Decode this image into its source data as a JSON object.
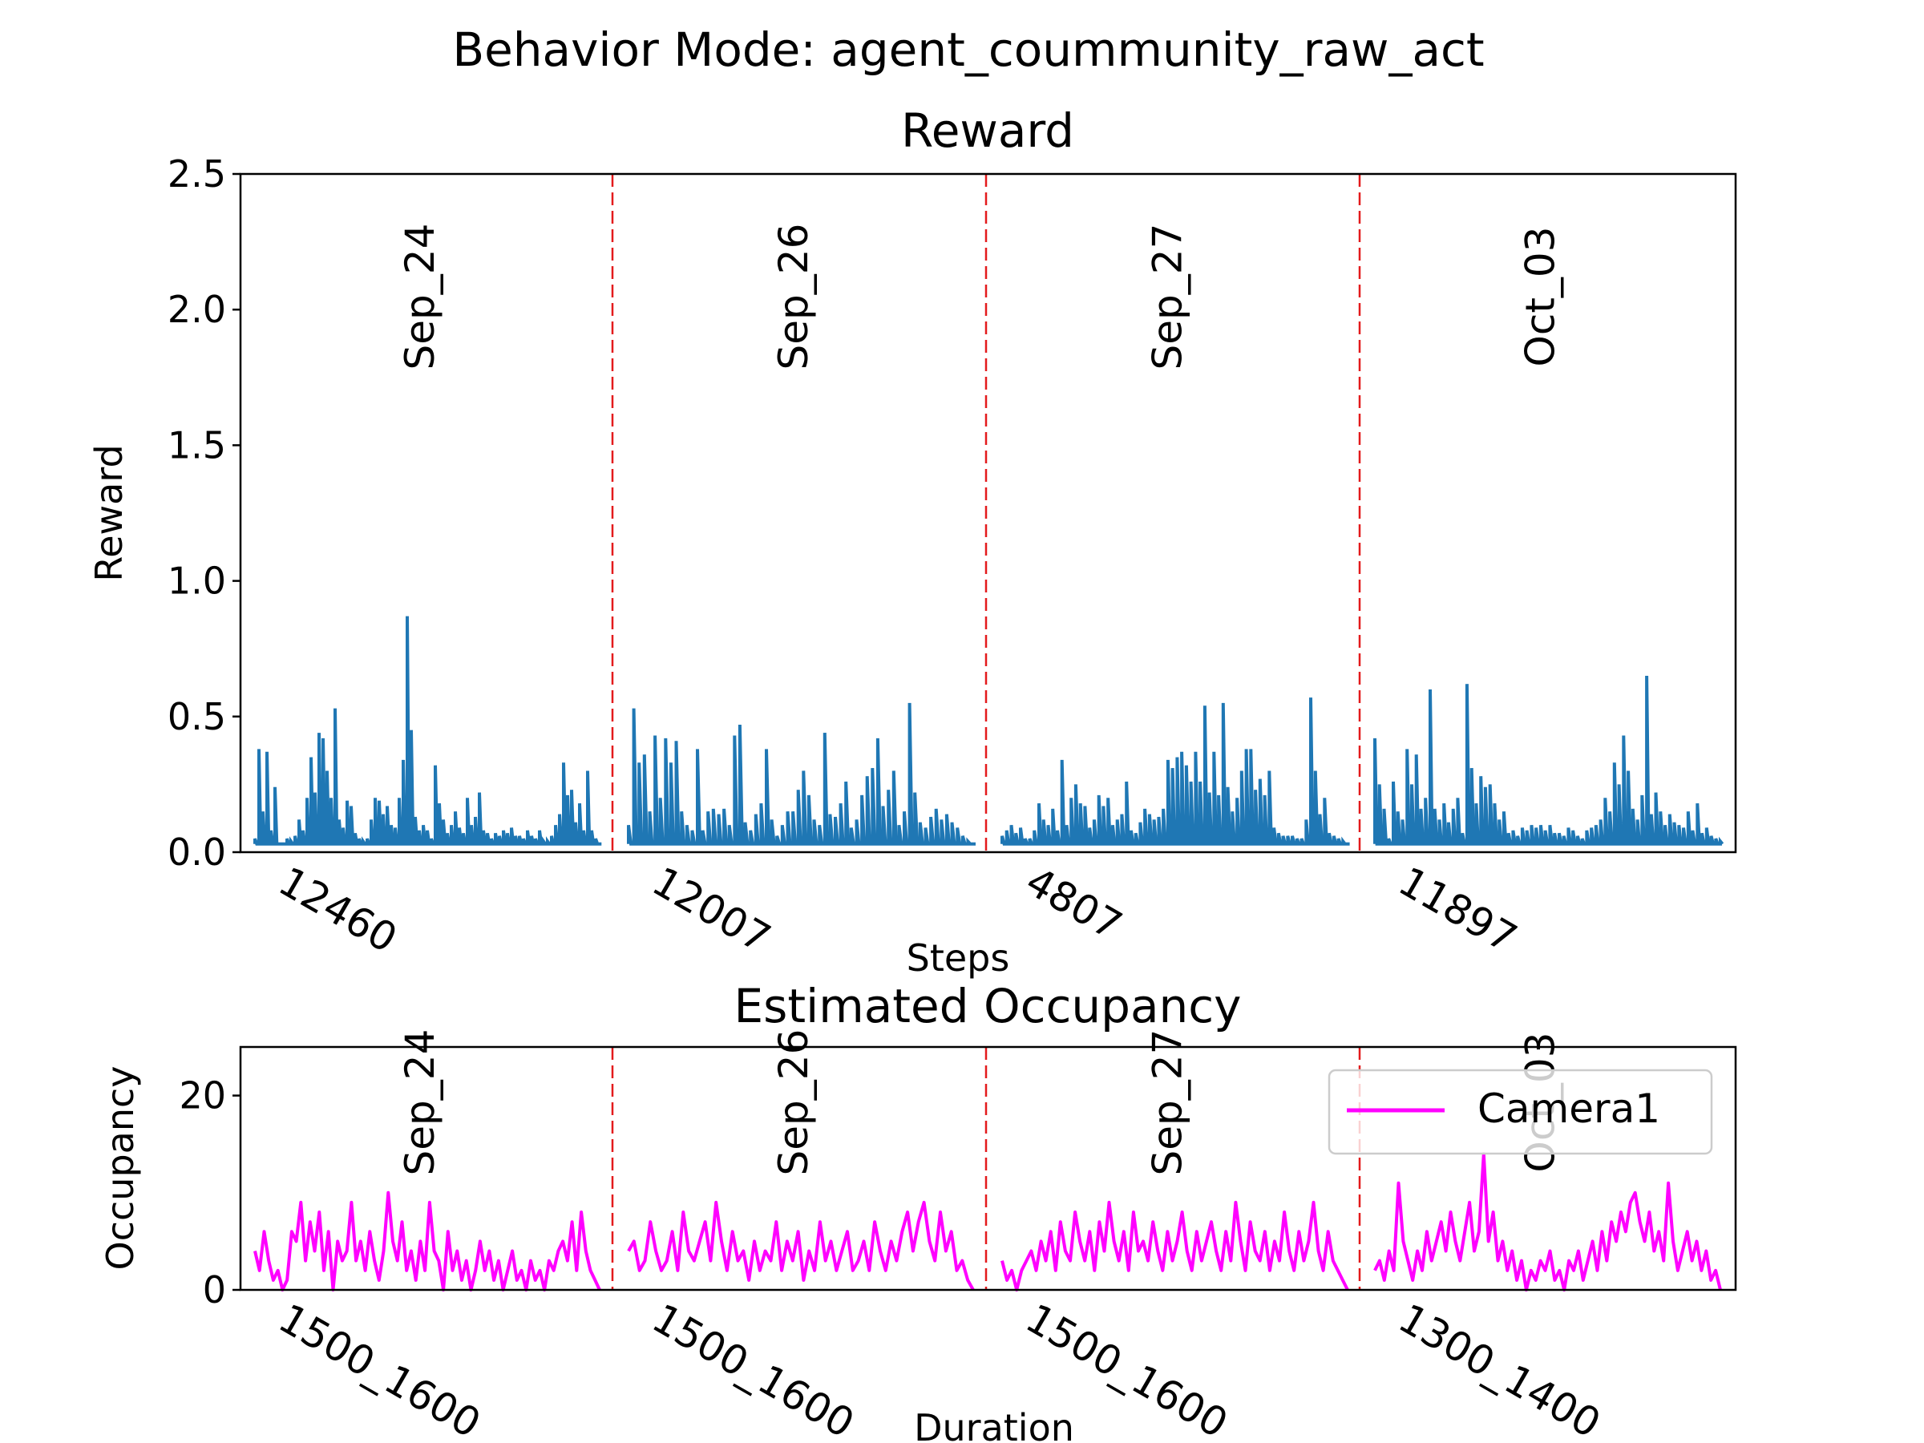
{
  "figure": {
    "suptitle": "Behavior Mode: agent_coummunity_raw_act"
  },
  "chart_data": [
    {
      "type": "line",
      "title": "Reward",
      "xlabel": "Steps",
      "ylabel": "Reward",
      "ylim": [
        0,
        2.5
      ],
      "yticks": [
        "0.0",
        "0.5",
        "1.0",
        "1.5",
        "2.0",
        "2.5"
      ],
      "segments": [
        "Sep_24",
        "Sep_26",
        "Sep_27",
        "Oct_03"
      ],
      "categories": [
        "12460",
        "12007",
        "4807",
        "11897"
      ],
      "color": "#1f77b4",
      "separator_color": "#e31a1c",
      "legend": "none",
      "grid": false,
      "series": [
        {
          "values": [
            [
              0.05,
              0.38,
              0.15,
              0.37,
              0.08,
              0.24,
              0.03,
              0.03,
              0.05,
              0.04,
              0.06,
              0.12,
              0.08,
              0.2,
              0.35,
              0.22,
              0.44,
              0.42,
              0.3,
              0.2,
              0.53,
              0.12,
              0.09,
              0.19,
              0.17,
              0.07,
              0.05,
              0.04,
              0.05,
              0.12,
              0.2,
              0.19,
              0.14,
              0.17,
              0.1,
              0.09,
              0.2,
              0.34,
              0.87,
              0.45,
              0.13,
              0.08,
              0.1,
              0.08,
              0.05,
              0.32,
              0.18,
              0.12,
              0.07,
              0.1,
              0.15,
              0.09,
              0.07,
              0.2,
              0.1,
              0.13,
              0.22,
              0.08,
              0.07,
              0.05,
              0.07,
              0.06,
              0.08,
              0.07,
              0.09,
              0.06,
              0.06,
              0.05,
              0.08,
              0.06,
              0.05,
              0.08,
              0.04,
              0.04,
              0.06,
              0.1,
              0.14,
              0.33,
              0.21,
              0.23,
              0.11,
              0.18,
              0.08,
              0.3,
              0.08,
              0.05,
              0.03
            ],
            [
              0.1,
              0.53,
              0.33,
              0.36,
              0.15,
              0.43,
              0.2,
              0.42,
              0.33,
              0.41,
              0.15,
              0.1,
              0.08,
              0.38,
              0.08,
              0.15,
              0.16,
              0.14,
              0.16,
              0.1,
              0.43,
              0.47,
              0.11,
              0.08,
              0.14,
              0.18,
              0.38,
              0.12,
              0.06,
              0.1,
              0.15,
              0.15,
              0.23,
              0.3,
              0.21,
              0.12,
              0.1,
              0.44,
              0.14,
              0.13,
              0.18,
              0.26,
              0.09,
              0.12,
              0.21,
              0.28,
              0.31,
              0.42,
              0.17,
              0.23,
              0.3,
              0.1,
              0.15,
              0.55,
              0.22,
              0.11,
              0.09,
              0.13,
              0.16,
              0.12,
              0.14,
              0.11,
              0.09,
              0.06,
              0.04,
              0.03
            ],
            [
              0.06,
              0.08,
              0.1,
              0.07,
              0.09,
              0.05,
              0.05,
              0.08,
              0.18,
              0.12,
              0.1,
              0.16,
              0.08,
              0.34,
              0.1,
              0.2,
              0.25,
              0.18,
              0.17,
              0.09,
              0.12,
              0.21,
              0.17,
              0.2,
              0.1,
              0.12,
              0.14,
              0.26,
              0.08,
              0.07,
              0.11,
              0.16,
              0.14,
              0.12,
              0.13,
              0.16,
              0.34,
              0.31,
              0.35,
              0.37,
              0.32,
              0.26,
              0.37,
              0.26,
              0.54,
              0.22,
              0.37,
              0.21,
              0.55,
              0.24,
              0.15,
              0.2,
              0.3,
              0.38,
              0.38,
              0.23,
              0.27,
              0.21,
              0.3,
              0.09,
              0.07,
              0.06,
              0.06,
              0.06,
              0.05,
              0.05,
              0.12,
              0.57,
              0.3,
              0.14,
              0.2,
              0.07,
              0.06,
              0.05,
              0.04,
              0.03
            ],
            [
              0.42,
              0.25,
              0.16,
              0.05,
              0.26,
              0.15,
              0.12,
              0.38,
              0.25,
              0.36,
              0.16,
              0.2,
              0.6,
              0.16,
              0.12,
              0.18,
              0.11,
              0.16,
              0.2,
              0.07,
              0.62,
              0.31,
              0.18,
              0.28,
              0.24,
              0.25,
              0.18,
              0.12,
              0.15,
              0.07,
              0.08,
              0.06,
              0.09,
              0.08,
              0.1,
              0.09,
              0.1,
              0.08,
              0.1,
              0.07,
              0.07,
              0.06,
              0.09,
              0.08,
              0.06,
              0.05,
              0.08,
              0.09,
              0.1,
              0.12,
              0.2,
              0.15,
              0.33,
              0.25,
              0.43,
              0.3,
              0.16,
              0.12,
              0.21,
              0.65,
              0.14,
              0.22,
              0.15,
              0.1,
              0.14,
              0.11,
              0.1,
              0.09,
              0.15,
              0.08,
              0.18,
              0.07,
              0.09,
              0.06,
              0.05,
              0.04
            ]
          ]
        }
      ]
    },
    {
      "type": "line",
      "title": "Estimated Occupancy",
      "xlabel": "Duration",
      "ylabel": "Occupancy",
      "ylim": [
        0,
        25
      ],
      "yticks": [
        "0",
        "20"
      ],
      "segments": [
        "Sep_24",
        "Sep_26",
        "Sep_27",
        "Oct_03"
      ],
      "categories": [
        "1500_1600",
        "1500_1600",
        "1500_1600",
        "1300_1400"
      ],
      "color": "#ff00ff",
      "separator_color": "#e31a1c",
      "legend": "top-right",
      "grid": false,
      "series": [
        {
          "name": "Camera1",
          "values": [
            [
              4,
              2,
              6,
              3,
              1,
              2,
              0,
              1,
              6,
              5,
              9,
              3,
              7,
              4,
              8,
              2,
              6,
              0,
              5,
              3,
              4,
              9,
              3,
              5,
              2,
              6,
              3,
              1,
              4,
              10,
              5,
              3,
              7,
              2,
              4,
              1,
              5,
              2,
              9,
              4,
              3,
              0,
              6,
              2,
              4,
              1,
              3,
              0,
              2,
              5,
              2,
              4,
              1,
              3,
              0,
              2,
              4,
              1,
              2,
              0,
              3,
              1,
              2,
              0,
              3,
              2,
              4,
              5,
              3,
              7,
              2,
              8,
              4,
              2,
              1,
              0
            ],
            [
              4,
              5,
              2,
              3,
              7,
              4,
              2,
              3,
              6,
              2,
              8,
              4,
              3,
              5,
              7,
              3,
              9,
              5,
              2,
              6,
              3,
              4,
              1,
              5,
              2,
              4,
              3,
              7,
              2,
              5,
              3,
              6,
              1,
              4,
              2,
              7,
              3,
              5,
              2,
              4,
              6,
              2,
              3,
              5,
              2,
              7,
              4,
              2,
              5,
              3,
              6,
              8,
              4,
              7,
              9,
              5,
              3,
              8,
              4,
              6,
              2,
              3,
              1,
              0
            ],
            [
              3,
              1,
              2,
              0,
              2,
              3,
              4,
              2,
              5,
              3,
              6,
              2,
              7,
              4,
              3,
              8,
              5,
              3,
              6,
              2,
              7,
              4,
              9,
              5,
              3,
              6,
              2,
              8,
              4,
              5,
              3,
              7,
              4,
              2,
              6,
              3,
              5,
              8,
              4,
              2,
              6,
              3,
              5,
              7,
              4,
              2,
              6,
              3,
              9,
              5,
              2,
              7,
              4,
              3,
              6,
              2,
              5,
              3,
              8,
              4,
              2,
              6,
              3,
              5,
              9,
              4,
              2,
              6,
              3,
              2,
              1,
              0
            ],
            [
              2,
              3,
              1,
              4,
              2,
              11,
              5,
              3,
              1,
              4,
              2,
              6,
              3,
              5,
              7,
              4,
              8,
              5,
              3,
              6,
              9,
              4,
              6,
              14,
              5,
              8,
              3,
              5,
              2,
              4,
              1,
              3,
              0,
              2,
              1,
              3,
              2,
              4,
              1,
              2,
              0,
              3,
              2,
              4,
              1,
              3,
              5,
              2,
              6,
              3,
              7,
              5,
              8,
              6,
              9,
              10,
              7,
              5,
              8,
              4,
              6,
              3,
              11,
              5,
              2,
              4,
              6,
              3,
              5,
              2,
              4,
              1,
              2,
              0
            ]
          ]
        }
      ]
    }
  ]
}
